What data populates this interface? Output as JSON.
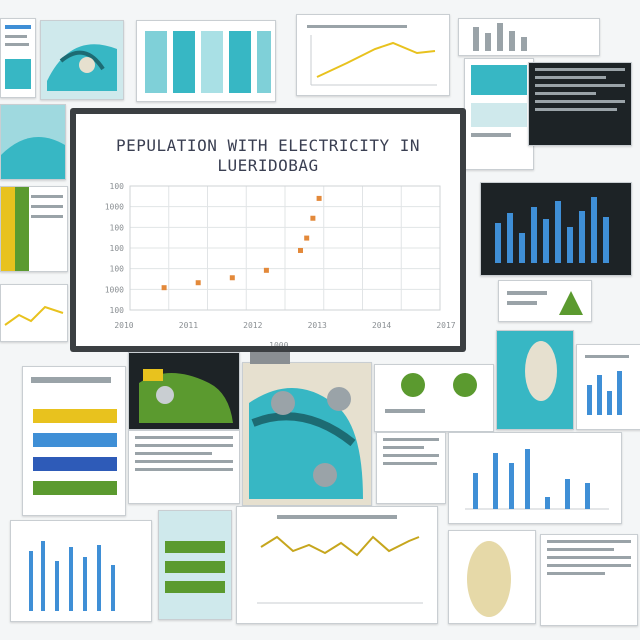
{
  "chart_data": {
    "type": "scatter",
    "title": "PEPULATION WITH ELECTRICITY IN",
    "subtitle": "LUERIDOBAG",
    "x_tick_labels": [
      "2010",
      "2011",
      "2012",
      "2013",
      "2014",
      "2017"
    ],
    "y_tick_labels": [
      "100",
      "1000",
      "100",
      "100",
      "100",
      "1000",
      "100"
    ],
    "xlabel": "1000",
    "points": [
      {
        "x": 0.11,
        "y": 0.18
      },
      {
        "x": 0.22,
        "y": 0.22
      },
      {
        "x": 0.33,
        "y": 0.26
      },
      {
        "x": 0.44,
        "y": 0.32
      },
      {
        "x": 0.55,
        "y": 0.48
      },
      {
        "x": 0.57,
        "y": 0.58
      },
      {
        "x": 0.59,
        "y": 0.74
      },
      {
        "x": 0.61,
        "y": 0.9
      }
    ],
    "grid": true,
    "marker_color": "#e3893a"
  },
  "colors": {
    "teal": "#37b7c4",
    "green": "#5b9a2f",
    "yellow": "#e8c21e",
    "blue": "#3f8fd6",
    "navy": "#1d2326"
  }
}
